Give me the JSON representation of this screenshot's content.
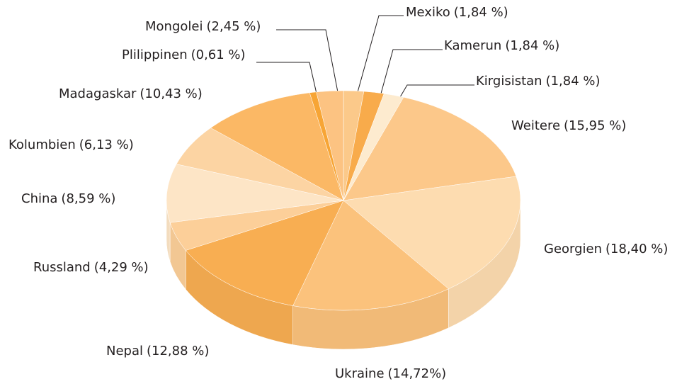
{
  "chart_data": {
    "type": "pie3d",
    "categories": [
      "Mexiko",
      "Kamerun",
      "Kirgisistan",
      "Weitere",
      "Georgien",
      "Ukraine",
      "Nepal",
      "Russland",
      "China",
      "Kolumbien",
      "Madagaskar",
      "Plilippinen",
      "Mongolei"
    ],
    "values": [
      1.84,
      1.84,
      1.84,
      15.95,
      18.4,
      14.72,
      12.88,
      4.29,
      8.59,
      6.13,
      10.43,
      0.61,
      2.45
    ],
    "value_labels": [
      "(1,84 %)",
      "(1,84 %)",
      "(1,84 %)",
      "(15,95 %)",
      "(18,40 %)",
      "(14,72%)",
      "(12,88 %)",
      "(4,29 %)",
      "(8,59 %)",
      "(6,13 %)",
      "(10,43 %)",
      "(0,61 %)",
      "(2,45 %)"
    ],
    "colors": [
      "#fbc98a",
      "#f8ab4b",
      "#fdebcf",
      "#fcc88a",
      "#fddcb0",
      "#fbc27c",
      "#f8ae52",
      "#fccf99",
      "#fde5c6",
      "#fcd4a3",
      "#fbb865",
      "#f7a535",
      "#fcc382"
    ]
  }
}
